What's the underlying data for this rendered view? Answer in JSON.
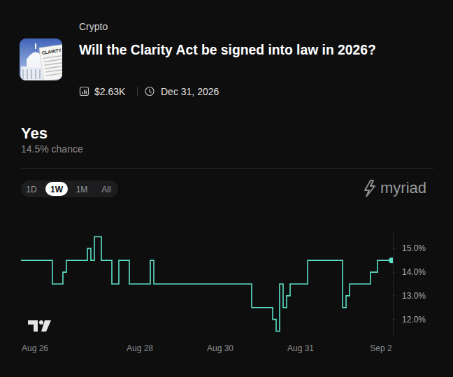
{
  "header": {
    "category": "Crypto",
    "volume": "$2.63K",
    "end_date": "Dec 31, 2026",
    "icon_text": "CLARITY"
  },
  "chart_data": {
    "type": "line",
    "title": "Will the Clarity Act be signed into law in 2026?",
    "outcome": "Yes",
    "chance_label": "14.5% chance",
    "tabs": [
      "1D",
      "1W",
      "1M",
      "All"
    ],
    "selected_tab": "1W",
    "brand": "myriad",
    "categories": [
      null,
      null,
      null,
      null,
      "Aug 26",
      null,
      null,
      null,
      null,
      null,
      null,
      null,
      null,
      null,
      null,
      null,
      null,
      null,
      null,
      null,
      null,
      null,
      null,
      null,
      null,
      null,
      null,
      null,
      null,
      null,
      null,
      null,
      null,
      null,
      "Aug 28",
      null,
      null,
      null,
      null,
      null,
      null,
      null,
      null,
      null,
      null,
      null,
      null,
      null,
      null,
      null,
      null,
      null,
      null,
      null,
      null,
      null,
      null,
      "Aug 30",
      null,
      null,
      null,
      null,
      null,
      null,
      null,
      null,
      null,
      null,
      null,
      null,
      null,
      null,
      null,
      null,
      null,
      null,
      null,
      null,
      null,
      null,
      "Aug 31",
      null,
      null,
      null,
      null,
      null,
      null,
      null,
      null,
      null,
      null,
      null,
      null,
      null,
      null,
      null,
      null,
      null,
      null,
      null,
      null,
      null,
      null,
      "Sep 2",
      null,
      null,
      null
    ],
    "values": [
      14.5,
      14.5,
      14.5,
      14.5,
      14.5,
      14.5,
      14.5,
      14.5,
      14.5,
      13.5,
      13.5,
      13.5,
      14.0,
      14.5,
      14.5,
      14.5,
      14.5,
      14.5,
      14.5,
      15.0,
      14.5,
      15.5,
      15.5,
      14.5,
      14.5,
      14.5,
      13.5,
      13.5,
      14.5,
      14.5,
      14.5,
      13.5,
      13.5,
      13.5,
      13.5,
      13.5,
      13.5,
      14.5,
      13.5,
      13.5,
      13.5,
      13.5,
      13.5,
      13.5,
      13.5,
      13.5,
      13.5,
      13.5,
      13.5,
      13.5,
      13.5,
      13.5,
      13.5,
      13.5,
      13.5,
      13.5,
      13.5,
      13.5,
      13.5,
      13.5,
      13.5,
      13.5,
      13.5,
      13.5,
      13.5,
      13.5,
      12.5,
      12.5,
      12.5,
      12.5,
      12.5,
      12.5,
      12.0,
      11.5,
      13.5,
      12.5,
      13.0,
      13.5,
      13.5,
      13.5,
      13.5,
      13.5,
      14.5,
      14.5,
      14.5,
      14.5,
      14.5,
      14.5,
      14.5,
      14.5,
      14.5,
      14.5,
      12.5,
      13.0,
      13.5,
      13.5,
      13.5,
      13.5,
      13.5,
      13.5,
      14.0,
      14.0,
      14.5,
      14.5,
      14.5,
      14.5,
      14.5
    ],
    "color": "#5ce0c6",
    "line_style": "step",
    "marker": "circle",
    "ylim": [
      11.25,
      15.75
    ],
    "yticks": [
      {
        "value": 12,
        "label": "12.0%"
      },
      {
        "value": 13,
        "label": "13.0%"
      },
      {
        "value": 14,
        "label": "14.0%"
      },
      {
        "value": 15,
        "label": "15.0%"
      }
    ],
    "grid": false
  }
}
